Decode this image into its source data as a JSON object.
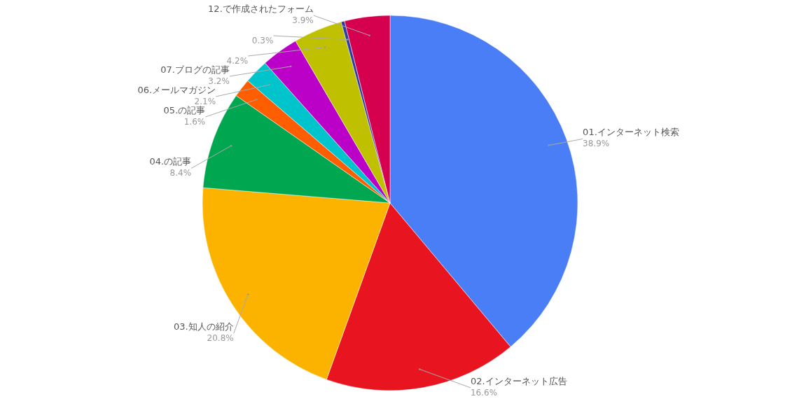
{
  "chart_data": {
    "type": "pie",
    "categories": [
      "01.インターネット検索",
      "02.インターネット広告",
      "03.知人の紹介",
      "04.の記事",
      "05.の記事",
      "06.メールマガジン",
      "07.ブログの記事",
      null,
      null,
      "12.で作成されたフォーム"
    ],
    "values": [
      38.9,
      16.6,
      20.8,
      8.4,
      1.6,
      2.1,
      3.2,
      4.2,
      0.3,
      3.9
    ],
    "colors": [
      "#4a7ef6",
      "#e8141f",
      "#fbb300",
      "#00a650",
      "#ff5e00",
      "#00c4cc",
      "#bb00c8",
      "#bfc100",
      "#2e3da0",
      "#d5004e"
    ],
    "value_labels": [
      "38.9%",
      "16.6%",
      "20.8%",
      "8.4%",
      "1.6%",
      "2.1%",
      "3.2%",
      "4.2%",
      "0.3%",
      "3.9%"
    ]
  }
}
